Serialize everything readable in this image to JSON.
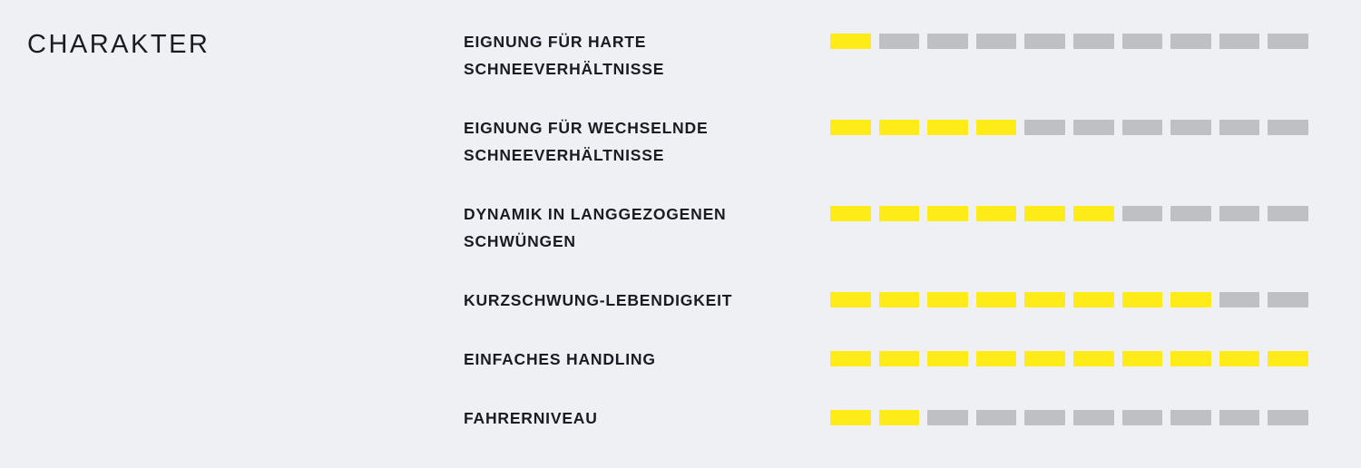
{
  "page": {
    "background": "#eef0f4"
  },
  "section": {
    "title": "CHARAKTER"
  },
  "rating": {
    "max": 10,
    "colors": {
      "filled": "#ffeb17",
      "empty": "#bfc0c4"
    }
  },
  "rows": [
    {
      "label_lines": [
        "EIGNUNG FÜR HARTE",
        "SCHNEEVERHÄLTNISSE"
      ],
      "value": 1
    },
    {
      "label_lines": [
        "EIGNUNG FÜR WECHSELNDE",
        "SCHNEEVERHÄLTNISSE"
      ],
      "value": 4
    },
    {
      "label_lines": [
        "DYNAMIK IN LANGGEZOGENEN",
        "SCHWÜNGEN"
      ],
      "value": 6
    },
    {
      "label_lines": [
        "KURZSCHWUNG-LEBENDIGKEIT"
      ],
      "value": 8
    },
    {
      "label_lines": [
        "EINFACHES HANDLING"
      ],
      "value": 10
    },
    {
      "label_lines": [
        "FAHRERNIVEAU"
      ],
      "value": 2
    }
  ],
  "chart_data": {
    "type": "bar",
    "orientation": "horizontal",
    "title": "CHARAKTER",
    "categories": [
      "EIGNUNG FÜR HARTE SCHNEEVERHÄLTNISSE",
      "EIGNUNG FÜR WECHSELNDE SCHNEEVERHÄLTNISSE",
      "DYNAMIK IN LANGGEZOGENEN SCHWÜNGEN",
      "KURZSCHWUNG-LEBENDIGKEIT",
      "EINFACHES HANDLING",
      "FAHRERNIVEAU"
    ],
    "values": [
      1,
      4,
      6,
      8,
      10,
      2
    ],
    "value_range": [
      0,
      10
    ],
    "segments_per_bar": 10,
    "xlabel": "",
    "ylabel": "",
    "legend": false,
    "grid": false,
    "filled_color": "#ffeb17",
    "empty_color": "#bfc0c4"
  }
}
